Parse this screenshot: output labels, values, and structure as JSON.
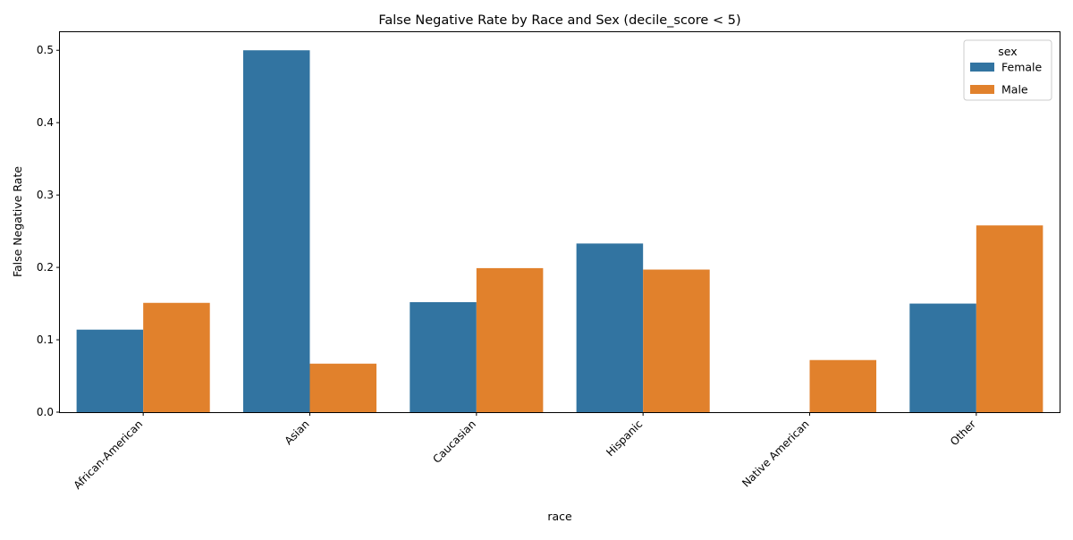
{
  "chart_data": {
    "type": "bar",
    "title": "False Negative Rate by Race and Sex (decile_score < 5)",
    "xlabel": "race",
    "ylabel": "False Negative Rate",
    "categories": [
      "African-American",
      "Asian",
      "Caucasian",
      "Hispanic",
      "Native American",
      "Other"
    ],
    "series": [
      {
        "name": "Female",
        "color": "#3274a1",
        "values": [
          0.114,
          0.5,
          0.152,
          0.233,
          0.0,
          0.15
        ]
      },
      {
        "name": "Male",
        "color": "#e1812c",
        "values": [
          0.151,
          0.067,
          0.199,
          0.197,
          0.072,
          0.258
        ]
      }
    ],
    "ylim": [
      0,
      0.525
    ],
    "yticks": [
      "0.0",
      "0.1",
      "0.2",
      "0.3",
      "0.4",
      "0.5"
    ],
    "grid": false,
    "legend": {
      "title": "sex",
      "placement": "top-right"
    }
  }
}
